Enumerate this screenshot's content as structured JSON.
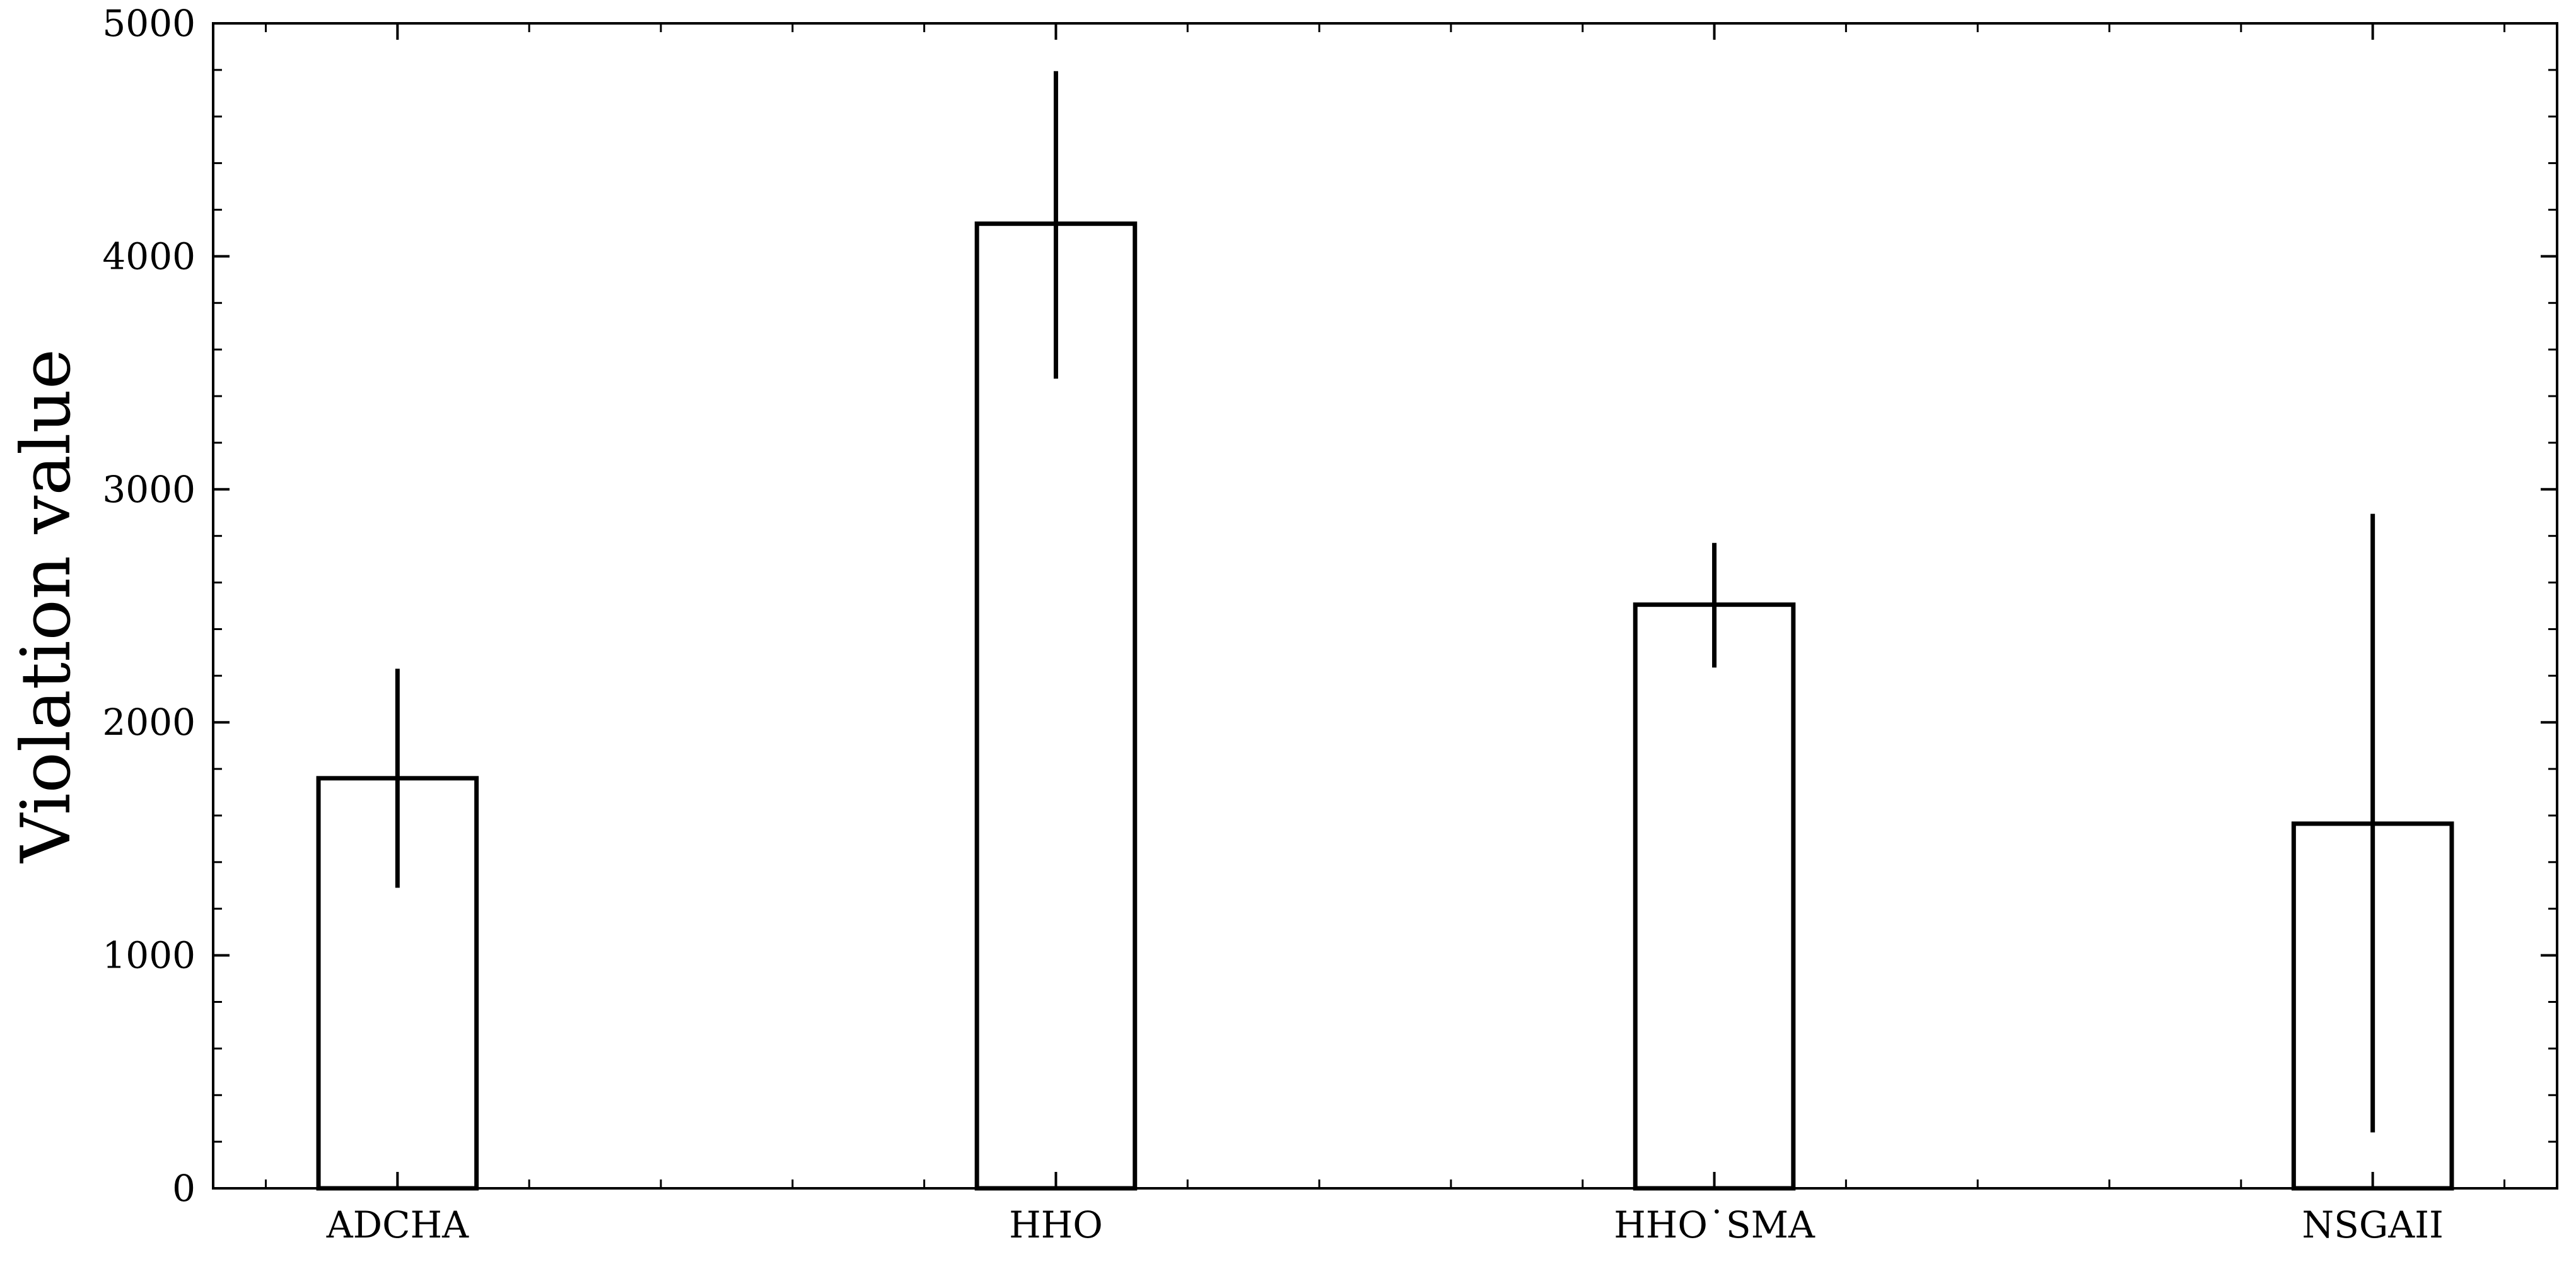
{
  "chart_data": {
    "type": "bar",
    "title": "",
    "xlabel": "",
    "ylabel": "Violation value",
    "categories": [
      "ADCHA",
      "HHO",
      "HHO˙SMA",
      "NSGAII"
    ],
    "values": [
      1760,
      4140,
      2505,
      1565
    ],
    "error_low": [
      1290,
      3475,
      2235,
      240
    ],
    "error_high": [
      2230,
      4795,
      2770,
      2895
    ],
    "ylim": [
      0,
      5000
    ],
    "yticks": [
      0,
      1000,
      2000,
      3000,
      4000,
      5000
    ],
    "ytick_labels": [
      "0",
      "1000",
      "2000",
      "3000",
      "4000",
      "5000"
    ],
    "y_minor_step": 200,
    "x_minor_step": 0.2,
    "xlim": [
      -0.28,
      3.28
    ],
    "grid": false,
    "legend": "none",
    "bar_fill": "#ffffff",
    "bar_edge": "#000000",
    "errorbar_color": "#000000"
  }
}
